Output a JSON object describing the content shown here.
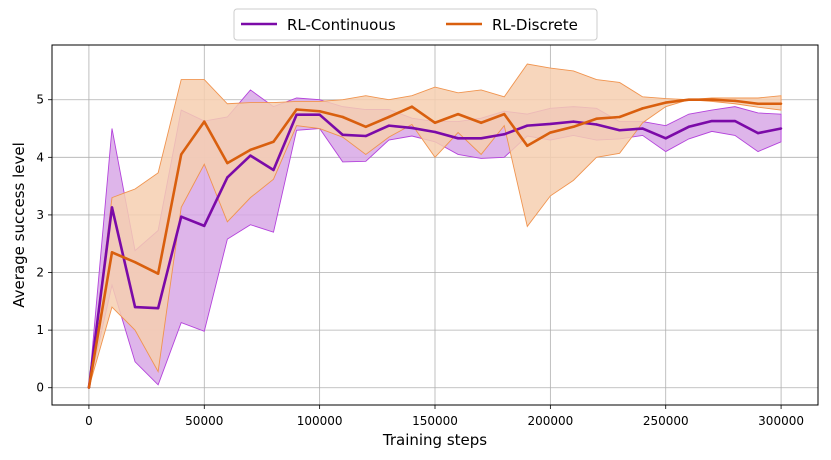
{
  "chart_data": {
    "type": "line",
    "title": "",
    "xlabel": "Training steps",
    "ylabel": "Average success level",
    "xlim": [
      -16000,
      316000
    ],
    "ylim": [
      -0.3,
      5.95
    ],
    "xticks": [
      0,
      50000,
      100000,
      150000,
      200000,
      250000,
      300000
    ],
    "xtick_labels": [
      "0",
      "50000",
      "100000",
      "150000",
      "200000",
      "250000",
      "300000"
    ],
    "yticks": [
      0,
      1,
      2,
      3,
      4,
      5
    ],
    "ytick_labels": [
      "0",
      "1",
      "2",
      "3",
      "4",
      "5"
    ],
    "grid": true,
    "legend_position": "top-center",
    "x": [
      0,
      10000,
      20000,
      30000,
      40000,
      50000,
      60000,
      70000,
      80000,
      90000,
      100000,
      110000,
      120000,
      130000,
      140000,
      150000,
      160000,
      170000,
      180000,
      190000,
      200000,
      210000,
      220000,
      230000,
      240000,
      250000,
      260000,
      270000,
      280000,
      290000,
      300000
    ],
    "series": [
      {
        "name": "RL-Continuous",
        "color": "#7b0aa8",
        "fill": "#d8a8e6",
        "edge": "#b443dc",
        "values": [
          0.0,
          3.13,
          1.4,
          1.38,
          2.97,
          2.81,
          3.65,
          4.03,
          3.78,
          4.74,
          4.74,
          4.39,
          4.37,
          4.55,
          4.51,
          4.44,
          4.33,
          4.33,
          4.4,
          4.55,
          4.58,
          4.62,
          4.57,
          4.47,
          4.5,
          4.33,
          4.53,
          4.63,
          4.63,
          4.42,
          4.5
        ],
        "lower": [
          0.0,
          1.78,
          0.45,
          0.05,
          1.13,
          0.98,
          2.58,
          2.83,
          2.7,
          4.47,
          4.5,
          3.92,
          3.93,
          4.3,
          4.37,
          4.27,
          4.05,
          3.98,
          4.0,
          4.37,
          4.3,
          4.38,
          4.3,
          4.32,
          4.38,
          4.1,
          4.32,
          4.45,
          4.38,
          4.1,
          4.27
        ],
        "upper": [
          0.0,
          4.5,
          2.38,
          2.73,
          4.82,
          4.63,
          4.7,
          5.17,
          4.88,
          5.03,
          5.0,
          4.88,
          4.83,
          4.83,
          4.68,
          4.62,
          4.62,
          4.68,
          4.8,
          4.75,
          4.85,
          4.88,
          4.85,
          4.62,
          4.62,
          4.55,
          4.75,
          4.82,
          4.88,
          4.77,
          4.75
        ]
      },
      {
        "name": "RL-Discrete",
        "color": "#d95f0e",
        "fill": "#f6cfb0",
        "edge": "#f0944f",
        "values": [
          0.0,
          2.35,
          2.18,
          1.98,
          4.05,
          4.62,
          3.9,
          4.13,
          4.27,
          4.83,
          4.8,
          4.7,
          4.53,
          4.7,
          4.88,
          4.6,
          4.75,
          4.6,
          4.75,
          4.2,
          4.43,
          4.53,
          4.67,
          4.7,
          4.85,
          4.95,
          5.0,
          5.0,
          4.98,
          4.93,
          4.93
        ],
        "lower": [
          0.0,
          1.4,
          1.0,
          0.28,
          3.13,
          3.88,
          2.88,
          3.3,
          3.62,
          4.55,
          4.5,
          4.35,
          4.05,
          4.35,
          4.57,
          4.0,
          4.43,
          4.05,
          4.55,
          2.8,
          3.33,
          3.6,
          4.0,
          4.07,
          4.6,
          4.88,
          5.0,
          4.97,
          4.93,
          4.87,
          4.82
        ],
        "upper": [
          0.0,
          3.3,
          3.45,
          3.73,
          5.35,
          5.35,
          4.93,
          4.95,
          4.95,
          4.97,
          4.97,
          5.0,
          5.07,
          5.0,
          5.07,
          5.22,
          5.12,
          5.17,
          5.05,
          5.62,
          5.55,
          5.5,
          5.35,
          5.3,
          5.05,
          5.02,
          5.0,
          5.03,
          5.03,
          5.03,
          5.07
        ]
      }
    ]
  }
}
